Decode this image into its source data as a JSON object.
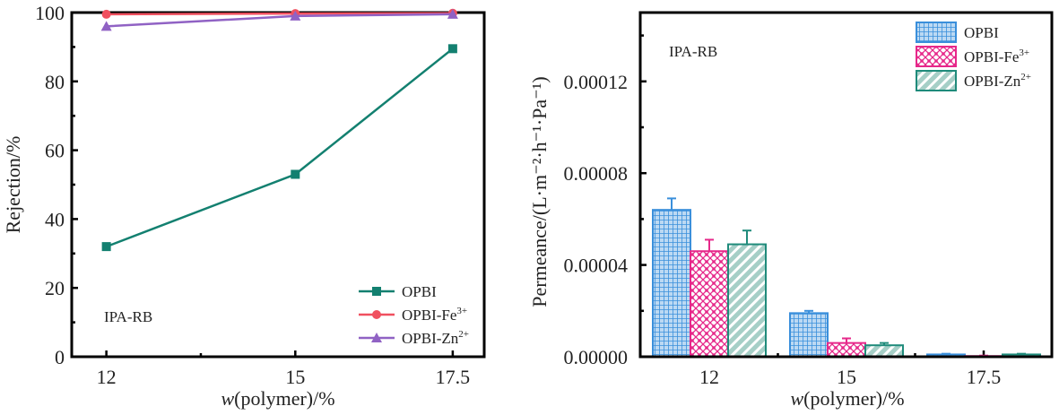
{
  "colors": {
    "opbi": "#138070",
    "fe": "#f0505f",
    "zn": "#9062c4",
    "bar_opbi": "#3a8fdb",
    "bar_fe": "#e6288a",
    "bar_zn": "#1f8b7b"
  },
  "chart_data": [
    {
      "type": "line",
      "title": "",
      "annotation": "IPA-RB",
      "xlabel_italic": "w",
      "xlabel_rest": "(polymer)/%",
      "ylabel": "Rejection/%",
      "x": [
        12,
        15,
        17.5
      ],
      "x_tick_labels": [
        "12",
        "15",
        "17.5"
      ],
      "xlim": [
        11.45,
        18.0
      ],
      "ylim": [
        0,
        100
      ],
      "y_ticks": [
        0,
        20,
        40,
        60,
        80,
        100
      ],
      "y_tick_labels": [
        "0",
        "20",
        "40",
        "60",
        "80",
        "100"
      ],
      "legend_position": "bottom-right",
      "series": [
        {
          "name": "OPBI",
          "marker": "square",
          "color_key": "opbi",
          "values": [
            32,
            53,
            89.5
          ]
        },
        {
          "name": "OPBI-Fe",
          "sup": "3+",
          "marker": "circle",
          "color_key": "fe",
          "values": [
            99.5,
            99.7,
            99.8
          ]
        },
        {
          "name": "OPBI-Zn",
          "sup": "2+",
          "marker": "triangle",
          "color_key": "zn",
          "values": [
            96,
            99,
            99.5
          ]
        }
      ]
    },
    {
      "type": "bar",
      "title": "",
      "annotation": "IPA-RB",
      "xlabel_italic": "w",
      "xlabel_rest": "(polymer)/%",
      "ylabel": "Permeance/(L·m⁻²·h⁻¹·Pa⁻¹)",
      "categories": [
        "12",
        "15",
        "17.5"
      ],
      "ylim": [
        0,
        0.00015
      ],
      "y_ticks": [
        0,
        4e-05,
        8e-05,
        0.00012
      ],
      "y_tick_labels": [
        "0.00000",
        "0.00004",
        "0.00008",
        "0.00012"
      ],
      "legend_position": "top-right",
      "series": [
        {
          "name": "OPBI",
          "pattern": "grid",
          "color_key": "bar_opbi",
          "values": [
            6.4e-05,
            1.9e-05,
            1e-06
          ],
          "errors": [
            5e-06,
            1e-06,
            3e-07
          ]
        },
        {
          "name": "OPBI-Fe",
          "sup": "3+",
          "pattern": "dots",
          "color_key": "bar_fe",
          "values": [
            4.6e-05,
            6e-06,
            3e-07
          ],
          "errors": [
            5e-06,
            2e-06,
            2e-07
          ]
        },
        {
          "name": "OPBI-Zn",
          "sup": "2+",
          "pattern": "hatch",
          "color_key": "bar_zn",
          "values": [
            4.9e-05,
            5e-06,
            1e-06
          ],
          "errors": [
            6e-06,
            1e-06,
            3e-07
          ]
        }
      ]
    }
  ]
}
